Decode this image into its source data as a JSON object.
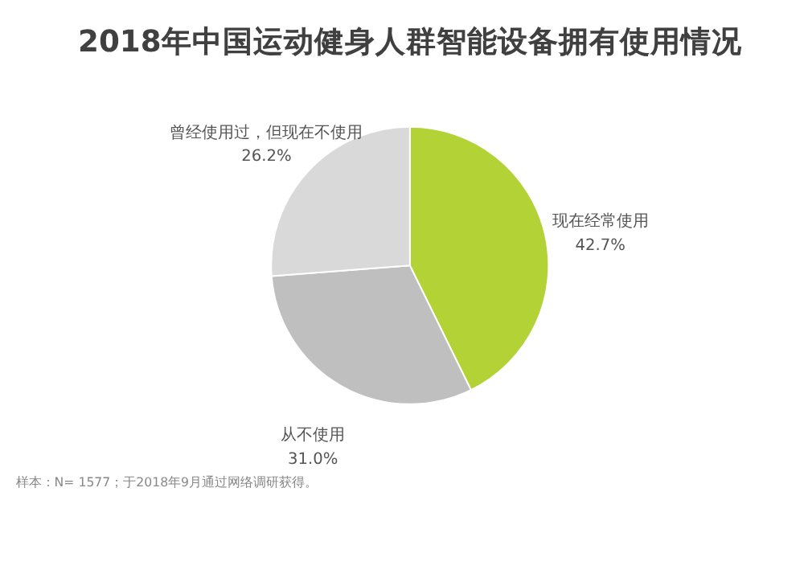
{
  "chart_data": {
    "type": "pie",
    "title": "2018年中国运动健身人群智能设备拥有使用情况",
    "categories": [
      "现在经常使用",
      "从不使用",
      "曾经使用过，但现在不使用"
    ],
    "values": [
      42.7,
      31.0,
      26.2
    ],
    "value_labels": [
      "42.7%",
      "31.0%",
      "26.2%"
    ],
    "colors": [
      "#b3d236",
      "#bfbfbf",
      "#d9d9d9"
    ],
    "legend": false,
    "annotations": [
      "样本：N= 1577；于2018年9月通过网络调研获得。"
    ]
  }
}
